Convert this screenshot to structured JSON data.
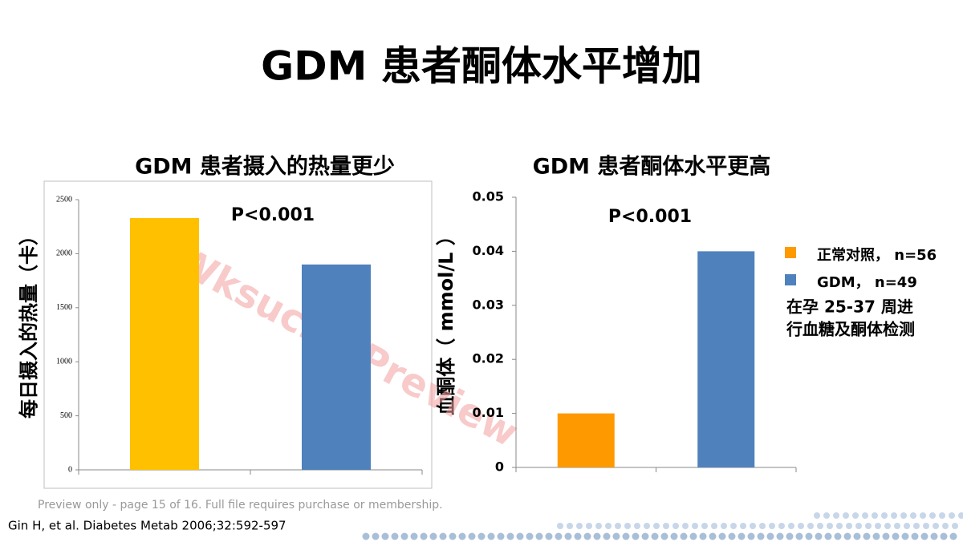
{
  "title": "GDM 患者酮体水平增加",
  "chart_data": [
    {
      "type": "bar",
      "title": "GDM 患者摄入的热量更少",
      "ylabel": "每日摄入的热量（卡）",
      "annotation": "P<0.001",
      "categories": [
        null,
        null
      ],
      "values": [
        2330,
        1900
      ],
      "colors": [
        "#ffc000",
        "#4f81bd"
      ],
      "ylim": [
        0,
        2500
      ],
      "yticks": [
        0,
        500,
        1000,
        1500,
        2000,
        2500
      ]
    },
    {
      "type": "bar",
      "title": "GDM 患者酮体水平更高",
      "ylabel": "血酮体（ mmol/L ）",
      "annotation": "P<0.001",
      "categories": [
        null,
        null
      ],
      "series": [
        {
          "name": "正常对照， n=56",
          "color": "#ff9900",
          "values": [
            0.01,
            null
          ]
        },
        {
          "name": "GDM， n=49",
          "color": "#4f81bd",
          "values": [
            null,
            0.04
          ]
        }
      ],
      "ylim": [
        0,
        0.05
      ],
      "yticks": [
        0,
        0.01,
        0.02,
        0.03,
        0.04,
        0.05
      ],
      "note": [
        "在孕 25-37 周进",
        "行血糖及酮体检测"
      ]
    }
  ],
  "watermark": "Wksucha Preview",
  "preview_notice": "Preview only - page 15 of 16. Full file requires purchase or membership.",
  "citation": "Gin H, et al. Diabetes Metab 2006;32:592-597"
}
